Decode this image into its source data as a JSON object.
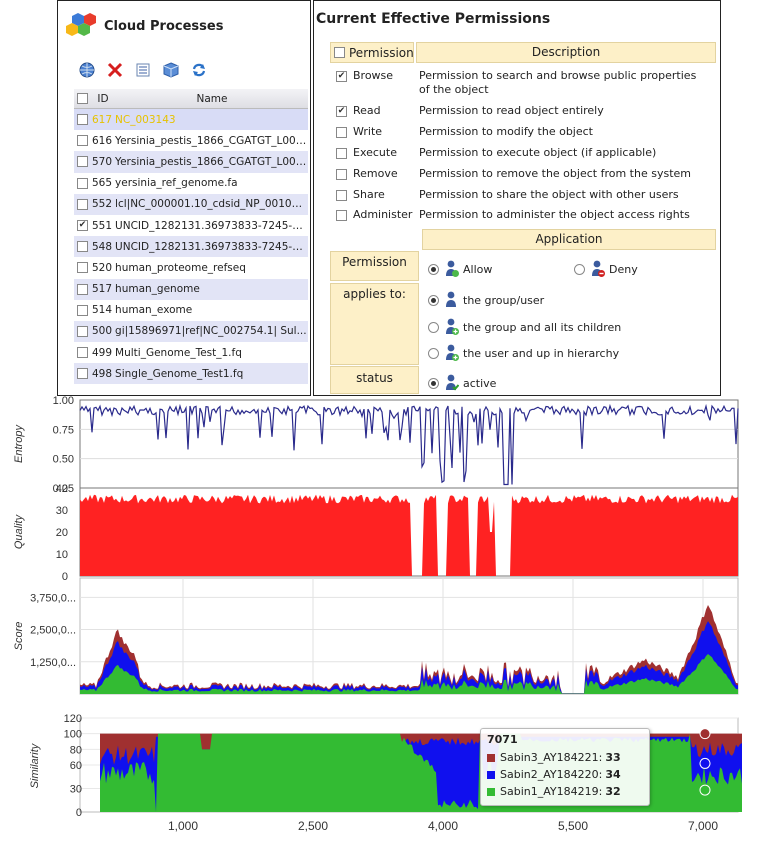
{
  "cloud": {
    "title": "Cloud Processes",
    "columns": {
      "id": "ID",
      "name": "Name"
    },
    "toolbar": [
      "globe-icon",
      "delete-icon",
      "list-icon",
      "package-icon",
      "refresh-icon"
    ],
    "rows": [
      {
        "id": "617",
        "name": "NC_003143",
        "checked": false,
        "selected": true
      },
      {
        "id": "616",
        "name": "Yersinia_pestis_1866_CGATGT_L001...",
        "checked": false,
        "selected": false
      },
      {
        "id": "570",
        "name": "Yersinia_pestis_1866_CGATGT_L001...",
        "checked": false,
        "selected": false
      },
      {
        "id": "565",
        "name": "yersinia_ref_genome.fa",
        "checked": false,
        "selected": false
      },
      {
        "id": "552",
        "name": "lcl|NC_000001.10_cdsid_NP_001009...",
        "checked": false,
        "selected": false
      },
      {
        "id": "551",
        "name": "UNCID_1282131.36973833-7245-444f...",
        "checked": true,
        "selected": false
      },
      {
        "id": "548",
        "name": "UNCID_1282131.36973833-7245-444f...",
        "checked": false,
        "selected": false
      },
      {
        "id": "520",
        "name": "human_proteome_refseq",
        "checked": false,
        "selected": false
      },
      {
        "id": "517",
        "name": "human_genome",
        "checked": false,
        "selected": false
      },
      {
        "id": "514",
        "name": "human_exome",
        "checked": false,
        "selected": false
      },
      {
        "id": "500",
        "name": "gi|15896971|ref|NC_002754.1| Sul...",
        "checked": false,
        "selected": false
      },
      {
        "id": "499",
        "name": "Multi_Genome_Test_1.fq",
        "checked": false,
        "selected": false
      },
      {
        "id": "498",
        "name": "Single_Genome_Test1.fq",
        "checked": false,
        "selected": false
      }
    ]
  },
  "permissions": {
    "title": "Current Effective Permissions",
    "col_permission": "Permission",
    "col_description": "Description",
    "rows": [
      {
        "name": "Browse",
        "desc": "Permission to search and browse public properties of the object",
        "checked": true
      },
      {
        "name": "Read",
        "desc": "Permission to read object entirely",
        "checked": true
      },
      {
        "name": "Write",
        "desc": "Permission to modify the object",
        "checked": false
      },
      {
        "name": "Execute",
        "desc": "Permission to execute object (if applicable)",
        "checked": false
      },
      {
        "name": "Remove",
        "desc": "Permission to remove the object from the system",
        "checked": false
      },
      {
        "name": "Share",
        "desc": "Permission to share the object with other users",
        "checked": false
      },
      {
        "name": "Administer",
        "desc": "Permission to administer the object access rights",
        "checked": false
      }
    ],
    "application": {
      "header": "Application",
      "permission_label": "Permission",
      "allow": "Allow",
      "deny": "Deny",
      "applies_label": "applies to:",
      "applies": [
        "the group/user",
        "the group and all its children",
        "the user and up in hierarchy"
      ],
      "status_label": "status",
      "status_value": "active"
    }
  },
  "colors": {
    "entropy": "#2a2a8c",
    "quality": "#ff2222",
    "sabin3": "#a03030",
    "sabin2": "#1010ee",
    "sabin1": "#33bb33",
    "header_bg": "#fdf0c8",
    "row_alt": "#e2e4f6"
  },
  "chart_data": [
    {
      "type": "line",
      "ylabel": "Entropy",
      "ytick_labels": [
        "1.00",
        "0.75",
        "0.50",
        "0.25"
      ],
      "ylim": [
        0.25,
        1.0
      ],
      "xlim": [
        100,
        7500
      ]
    },
    {
      "type": "area",
      "ylabel": "Quality",
      "ytick_labels": [
        "40",
        "30",
        "20",
        "10",
        "0"
      ],
      "ylim": [
        0,
        40
      ],
      "xlim": [
        100,
        7500
      ]
    },
    {
      "type": "area",
      "ylabel": "Score",
      "ytick_labels": [
        "3,750,0...",
        "2,500,0...",
        "1,250,0..."
      ],
      "ylim": [
        0,
        4500000
      ],
      "xlim": [
        100,
        7500
      ]
    },
    {
      "type": "area",
      "ylabel": "Similarity",
      "ytick_labels": [
        "120",
        "100",
        "80",
        "60",
        "30",
        "0"
      ],
      "ylim": [
        0,
        120
      ],
      "xlim": [
        100,
        7500
      ],
      "x_tick_labels": [
        "1,000",
        "2,500",
        "4,000",
        "5,500",
        "7,000"
      ],
      "series": [
        {
          "name": "Sabin3_AY184221"
        },
        {
          "name": "Sabin2_AY184220"
        },
        {
          "name": "Sabin1_AY184219"
        }
      ],
      "tooltip": {
        "title": "7071",
        "items": [
          {
            "name": "Sabin3_AY184221",
            "value": "33"
          },
          {
            "name": "Sabin2_AY184220",
            "value": "34"
          },
          {
            "name": "Sabin1_AY184219",
            "value": "32"
          }
        ]
      }
    }
  ]
}
